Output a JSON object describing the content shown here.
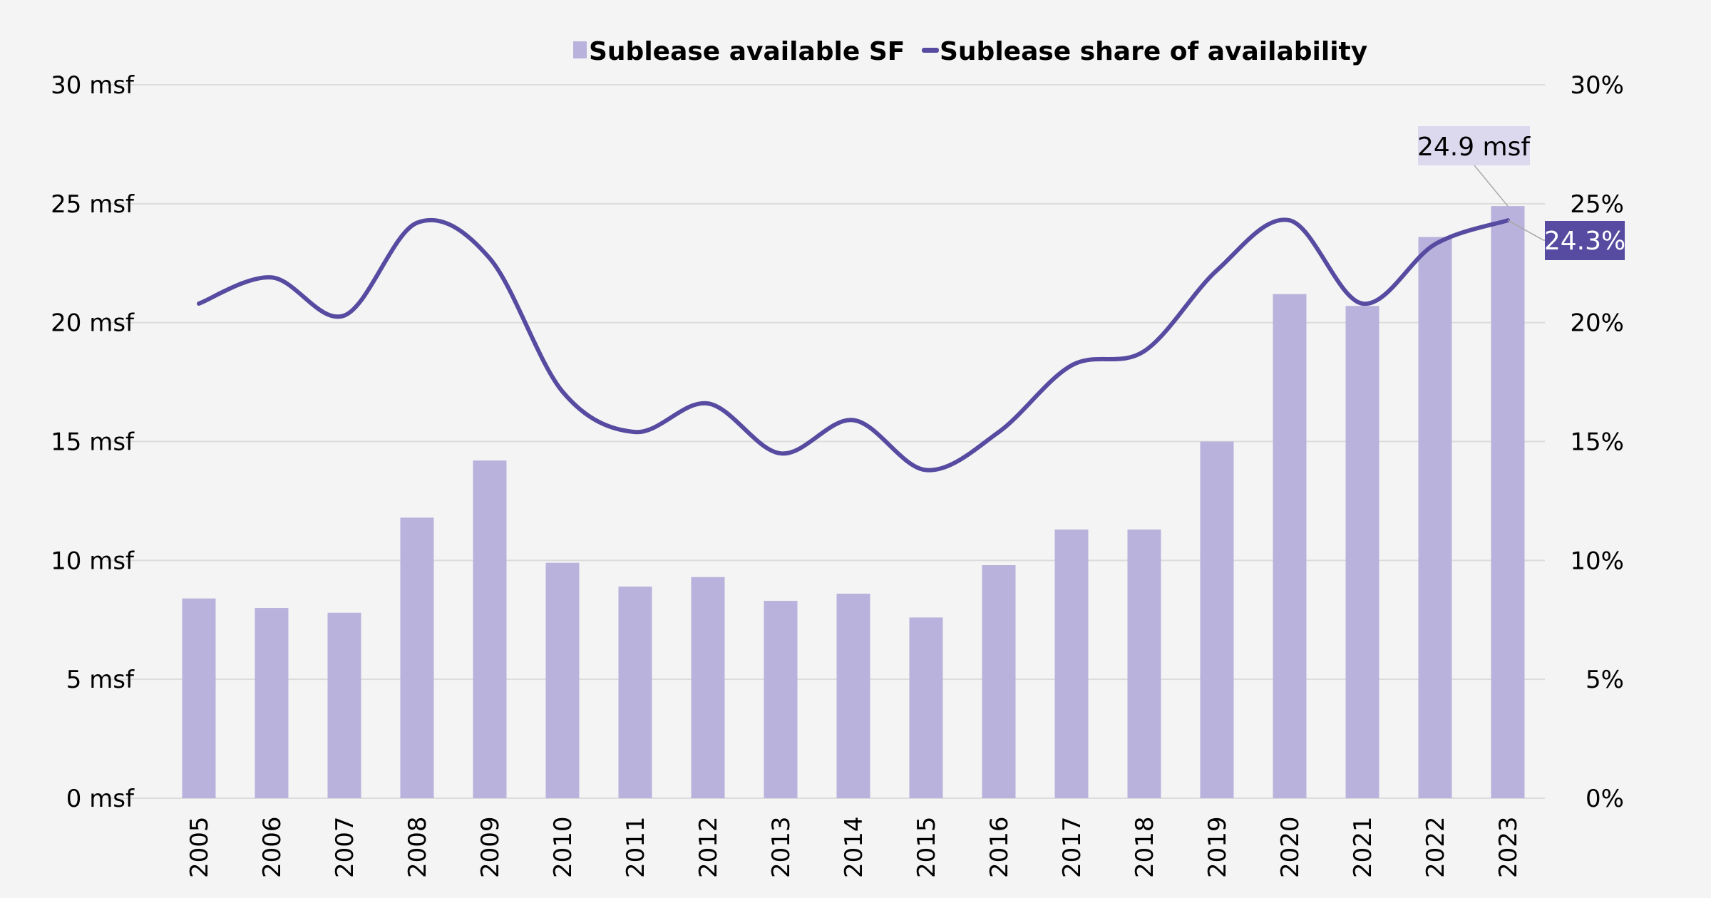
{
  "chart_data": {
    "type": "bar",
    "title": "",
    "categories": [
      "2005",
      "2006",
      "2007",
      "2008",
      "2009",
      "2010",
      "2011",
      "2012",
      "2013",
      "2014",
      "2015",
      "2016",
      "2017",
      "2018",
      "2019",
      "2020",
      "2021",
      "2022",
      "2023"
    ],
    "series": [
      {
        "name": "Sublease available SF",
        "type": "bar",
        "axis": "left",
        "color": "#b8b2dc",
        "values": [
          8.4,
          8.0,
          7.8,
          11.8,
          14.2,
          9.9,
          8.9,
          9.3,
          8.3,
          8.6,
          7.6,
          9.8,
          11.3,
          11.3,
          15.0,
          21.2,
          20.7,
          23.6,
          24.9
        ]
      },
      {
        "name": "Sublease share of availability",
        "type": "line",
        "smooth": true,
        "axis": "right",
        "color": "#564ba0",
        "values": [
          20.8,
          21.9,
          20.3,
          24.2,
          22.7,
          17.1,
          15.4,
          16.6,
          14.5,
          15.9,
          13.8,
          15.4,
          18.2,
          18.8,
          22.2,
          24.3,
          20.8,
          23.3,
          24.3
        ]
      }
    ],
    "y_left": {
      "label": "",
      "range": [
        0,
        30
      ],
      "ticks": [
        0,
        5,
        10,
        15,
        20,
        25,
        30
      ],
      "tick_labels": [
        "0 msf",
        "5 msf",
        "10 msf",
        "15 msf",
        "20 msf",
        "25 msf",
        "30 msf"
      ]
    },
    "y_right": {
      "label": "",
      "range": [
        0,
        30
      ],
      "ticks": [
        0,
        5,
        10,
        15,
        20,
        25,
        30
      ],
      "tick_labels": [
        "0%",
        "5%",
        "10%",
        "15%",
        "20%",
        "25%",
        "30%"
      ]
    },
    "xlabel": "",
    "x_tick_rotation": "vertical",
    "grid": true,
    "legend": {
      "position": "top-center",
      "entries": [
        {
          "label": "Sublease available SF",
          "marker": "square",
          "color": "#b8b2dc"
        },
        {
          "label": "Sublease share of availability",
          "marker": "line",
          "color": "#564ba0"
        }
      ]
    },
    "annotations": [
      {
        "text": "24.9 msf",
        "target_series": 0,
        "target_category": "2023",
        "bg": "#dcd8ee",
        "fg": "#000000"
      },
      {
        "text": "24.3%",
        "target_series": 1,
        "target_category": "2023",
        "bg": "#564ba0",
        "fg": "#ffffff"
      }
    ]
  }
}
